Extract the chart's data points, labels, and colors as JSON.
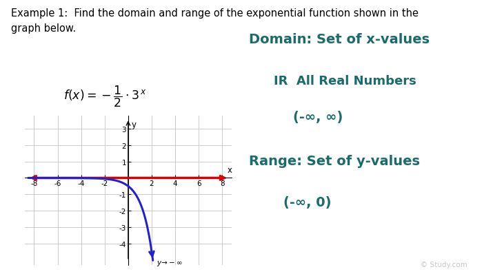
{
  "title_text": "Example 1:  Find the domain and range of the exponential function shown in the\ngraph below.",
  "graph": {
    "xlim": [
      -8.8,
      8.8
    ],
    "ylim": [
      -5.3,
      3.8
    ],
    "xticks": [
      -8,
      -6,
      -4,
      -2,
      2,
      4,
      6,
      8
    ],
    "yticks": [
      -4,
      -3,
      -2,
      -1,
      1,
      2,
      3
    ],
    "xlabel": "x",
    "ylabel": "y",
    "grid_color": "#cccccc",
    "curve_color": "#2222cc",
    "asymptote_color": "#dd0000",
    "curve_linewidth": 2.2,
    "asymptote_linewidth": 2.5
  },
  "right_text": {
    "domain_label": "Domain: Set of x-values",
    "domain_line2": "IR  All Real Numbers",
    "domain_line3": "(-∞, ∞)",
    "range_label": "Range: Set of y-values",
    "range_line2": "(-∞, 0)",
    "text_color": "#1a6b6b",
    "font_size_large": 14,
    "font_size_small": 13
  },
  "watermark": "© Study.com",
  "bg_color": "#ffffff"
}
